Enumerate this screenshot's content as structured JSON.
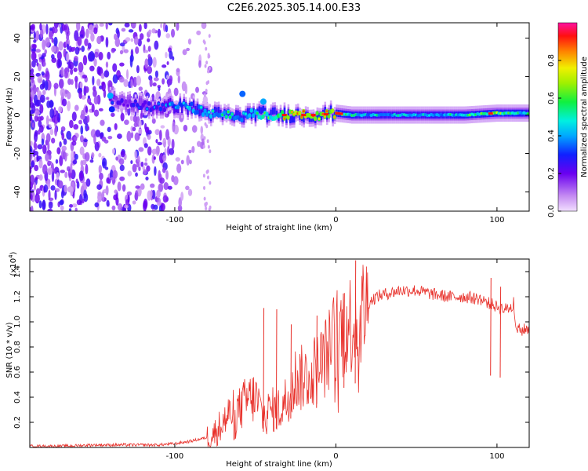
{
  "title": "C2E6.2025.305.14.00.E33",
  "chart_data": [
    {
      "type": "heatmap",
      "name": "spectrogram",
      "xlabel": "Height of straight line (km)",
      "ylabel": "Frequency (Hz)",
      "xlim": [
        -190,
        120
      ],
      "ylim": [
        -50,
        48
      ],
      "xticks": [
        -100,
        0,
        100
      ],
      "xtick_labels": [
        "-100",
        "0",
        "100"
      ],
      "yticks": [
        -40,
        -20,
        0,
        20,
        40
      ],
      "ytick_labels": [
        "-40",
        "-20",
        "0",
        "20",
        "40"
      ],
      "colorbar": {
        "label": "Normalized spectral amplitude",
        "range": [
          0,
          1
        ],
        "ticks": [
          0.0,
          0.2,
          0.4,
          0.6,
          0.8
        ],
        "tick_labels": [
          "0.0",
          "0.2",
          "0.4",
          "0.6",
          "0.8"
        ]
      },
      "ridge": {
        "x": [
          -140,
          -120,
          -110,
          -100,
          -90,
          -80,
          -70,
          -60,
          -50,
          -40,
          -30,
          -20,
          -10,
          0,
          10,
          20,
          40,
          60,
          80,
          100,
          120
        ],
        "freq": [
          8,
          5,
          4,
          5,
          4,
          1,
          0,
          -1,
          1,
          0,
          0,
          0,
          0,
          1,
          0,
          0,
          0,
          0,
          0,
          1,
          1
        ],
        "amplitude": [
          0.25,
          0.3,
          0.35,
          0.45,
          0.5,
          0.5,
          0.55,
          0.5,
          0.6,
          0.65,
          0.85,
          0.9,
          0.8,
          0.85,
          0.55,
          0.5,
          0.5,
          0.5,
          0.55,
          0.75,
          0.5
        ]
      }
    },
    {
      "type": "line",
      "name": "snr",
      "xlabel": "Height of straight line (km)",
      "ylabel": "SNR (10 * v/v)",
      "yscale_label": "(x10",
      "yscale_exponent": "4",
      "yscale_suffix": ")",
      "xlim": [
        -190,
        120
      ],
      "ylim": [
        0,
        1.5
      ],
      "xticks": [
        -100,
        0,
        100
      ],
      "xtick_labels": [
        "-100",
        "0",
        "100"
      ],
      "yticks": [
        0.2,
        0.4,
        0.6,
        0.8,
        1.0,
        1.2,
        1.4
      ],
      "ytick_labels": [
        "0.2",
        "0.4",
        "0.6",
        "0.8",
        "1.0",
        "1.2",
        "1.4"
      ],
      "color": "#e8302a",
      "x": [
        -190,
        -170,
        -150,
        -130,
        -110,
        -100,
        -90,
        -80,
        -75,
        -70,
        -65,
        -60,
        -55,
        -50,
        -45,
        -40,
        -35,
        -30,
        -25,
        -20,
        -15,
        -10,
        -5,
        0,
        5,
        10,
        15,
        20,
        25,
        30,
        40,
        50,
        60,
        70,
        80,
        90,
        95,
        100,
        105,
        110,
        112,
        115,
        120
      ],
      "y": [
        0.01,
        0.01,
        0.02,
        0.02,
        0.02,
        0.03,
        0.05,
        0.08,
        0.12,
        0.2,
        0.28,
        0.3,
        0.38,
        0.4,
        0.25,
        0.3,
        0.3,
        0.4,
        0.55,
        0.55,
        0.6,
        0.65,
        0.75,
        0.9,
        0.95,
        1.0,
        1.05,
        1.15,
        1.2,
        1.22,
        1.25,
        1.25,
        1.22,
        1.2,
        1.2,
        1.18,
        1.15,
        1.12,
        1.1,
        1.12,
        0.95,
        0.93,
        0.95
      ],
      "spikes": [
        {
          "x": -45,
          "y": 1.11
        },
        {
          "x": -37,
          "y": 1.1
        },
        {
          "x": -28,
          "y": 0.98
        },
        {
          "x": -12,
          "y": 1.05
        },
        {
          "x": 5,
          "y": 1.23
        },
        {
          "x": 12,
          "y": 1.49
        },
        {
          "x": 96,
          "y": 1.35
        },
        {
          "x": 102,
          "y": 1.28
        }
      ]
    }
  ]
}
